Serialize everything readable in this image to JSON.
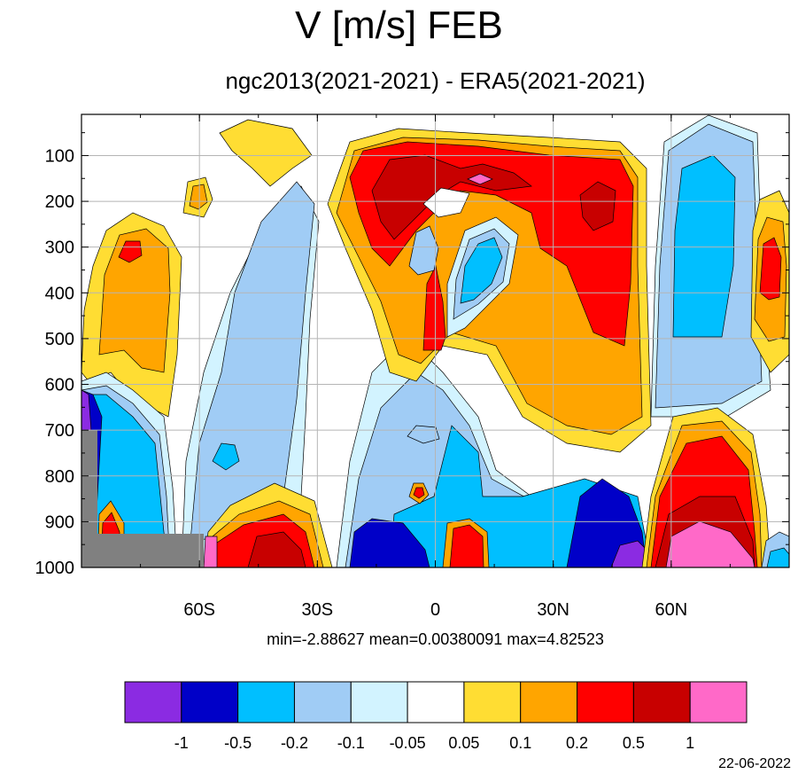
{
  "title": "V [m/s] FEB",
  "subtitle": "ngc2013(2021-2021) - ERA5(2021-2021)",
  "stats": "min=-2.88627   mean=0.00380091   max=4.82523",
  "date": "22-06-2022",
  "chart_data": {
    "type": "heatmap",
    "title": "V [m/s] FEB",
    "subtitle": "ngc2013(2021-2021) - ERA5(2021-2021)",
    "x_axis": {
      "ticks": [
        -60,
        -30,
        0,
        30,
        60
      ],
      "tick_labels": [
        "60S",
        "30S",
        "0",
        "30N",
        "60N"
      ],
      "range": [
        -90,
        90
      ]
    },
    "y_axis": {
      "ticks": [
        100,
        200,
        300,
        400,
        500,
        600,
        700,
        800,
        900,
        1000
      ],
      "tick_labels": [
        "100",
        "200",
        "300",
        "400",
        "500",
        "600",
        "700",
        "800",
        "900",
        "1000"
      ],
      "range": [
        10,
        1000
      ],
      "inverted": true
    },
    "grid": true,
    "colorbar": {
      "colors": [
        "#8b2be2",
        "#0000c8",
        "#00bfff",
        "#a0ccf5",
        "#d2f3ff",
        "#ffffff",
        "#ffdd33",
        "#ffa500",
        "#ff0000",
        "#c80000",
        "#ff69c8"
      ],
      "levels": [
        "-1",
        "-0.5",
        "-0.2",
        "-0.1",
        "-0.05",
        "0.05",
        "0.1",
        "0.2",
        "0.5",
        "1"
      ]
    },
    "stats": {
      "min": -2.88627,
      "mean": 0.00380091,
      "max": 4.82523
    },
    "missing_color": "#808080"
  }
}
